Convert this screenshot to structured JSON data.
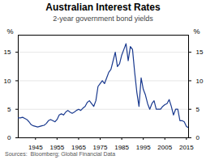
{
  "chart_data": {
    "type": "line",
    "title": "Australian Interest Rates",
    "subtitle": "2-year government bond yields",
    "ylabel": "%",
    "y2label": "%",
    "source": "Sources:  Bloomberg; Global Financial Data",
    "color": "#1a3a8f",
    "grid": true,
    "xlim": [
      1937,
      2016
    ],
    "xticks": [
      1945,
      1955,
      1965,
      1975,
      1985,
      1995,
      2005,
      2015
    ],
    "ylim": [
      0,
      18
    ],
    "yticks": [
      0,
      5,
      10,
      15
    ],
    "y2lim": [
      0,
      18
    ],
    "y2ticks": [
      0,
      5,
      10,
      15
    ],
    "x": [
      1937,
      1938,
      1939,
      1940,
      1941,
      1942,
      1943,
      1944,
      1945,
      1946,
      1947,
      1948,
      1949,
      1950,
      1951,
      1952,
      1953,
      1954,
      1955,
      1956,
      1957,
      1958,
      1959,
      1960,
      1961,
      1962,
      1963,
      1964,
      1965,
      1966,
      1967,
      1968,
      1969,
      1970,
      1971,
      1972,
      1973,
      1974,
      1975,
      1976,
      1977,
      1978,
      1979,
      1980,
      1981,
      1982,
      1983,
      1984,
      1985,
      1986,
      1987,
      1988,
      1989,
      1990,
      1991,
      1992,
      1993,
      1994,
      1995,
      1996,
      1997,
      1998,
      1999,
      2000,
      2001,
      2002,
      2003,
      2004,
      2005,
      2006,
      2007,
      2008,
      2009,
      2010,
      2011,
      2012,
      2013,
      2014,
      2015,
      2015.8
    ],
    "values": [
      3.5,
      3.5,
      3.6,
      3.4,
      3.2,
      2.8,
      2.3,
      2.1,
      2.0,
      1.9,
      2.0,
      2.1,
      2.2,
      2.5,
      3.0,
      3.2,
      3.0,
      2.8,
      3.2,
      4.0,
      4.2,
      4.0,
      4.5,
      4.8,
      4.5,
      4.3,
      4.5,
      4.8,
      5.0,
      4.8,
      5.2,
      5.5,
      6.2,
      6.5,
      6.0,
      5.5,
      6.5,
      9.0,
      9.5,
      10.0,
      9.5,
      10.5,
      11.5,
      12.0,
      13.5,
      15.0,
      12.5,
      13.0,
      14.5,
      15.5,
      16.5,
      13.5,
      16.0,
      15.5,
      11.5,
      8.0,
      5.5,
      10.5,
      8.5,
      7.5,
      6.0,
      5.0,
      6.0,
      6.5,
      5.0,
      5.0,
      5.0,
      5.5,
      5.8,
      6.0,
      6.7,
      5.5,
      4.0,
      5.0,
      5.0,
      3.0,
      3.0,
      2.8,
      2.0,
      1.8
    ]
  }
}
